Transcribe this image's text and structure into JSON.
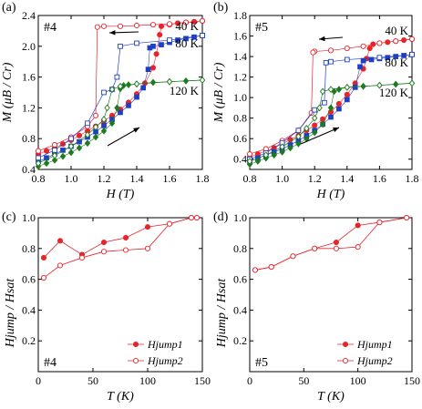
{
  "chart_data": [
    {
      "type": "scatter",
      "panel": "(a)",
      "sample": "#4",
      "ylabel": "M (μB / Cr)",
      "xlabel": "H (T)",
      "xlim": [
        0.8,
        1.8
      ],
      "ylim": [
        0.4,
        2.4
      ],
      "xticks": [
        "0.8",
        "1.0",
        "1.2",
        "1.4",
        "1.6",
        "1.8"
      ],
      "yticks": [
        "0.4",
        "0.8",
        "1.2",
        "1.6",
        "2.0",
        "2.4"
      ],
      "series": [
        {
          "name": "40 K",
          "color": "#e8242b",
          "up_x": [
            0.8,
            0.85,
            0.9,
            0.95,
            1.0,
            1.05,
            1.1,
            1.15,
            1.2,
            1.25,
            1.3,
            1.35,
            1.4,
            1.45,
            1.5,
            1.52,
            1.54,
            1.55,
            1.6,
            1.65,
            1.7,
            1.75,
            1.8
          ],
          "up_y": [
            0.6,
            0.64,
            0.68,
            0.73,
            0.78,
            0.84,
            0.9,
            0.96,
            1.03,
            1.1,
            1.18,
            1.27,
            1.38,
            1.52,
            1.72,
            1.9,
            2.15,
            2.26,
            2.28,
            2.3,
            2.31,
            2.32,
            2.33
          ],
          "down_x": [
            1.8,
            1.7,
            1.6,
            1.5,
            1.4,
            1.3,
            1.2,
            1.16,
            1.15,
            1.1,
            1.0,
            0.9,
            0.8
          ],
          "down_y": [
            2.33,
            2.31,
            2.29,
            2.28,
            2.27,
            2.26,
            2.26,
            2.25,
            1.1,
            0.96,
            0.82,
            0.72,
            0.64
          ]
        },
        {
          "name": "80 K",
          "color": "#1f3fc4",
          "up_x": [
            0.8,
            0.85,
            0.9,
            0.95,
            1.0,
            1.05,
            1.1,
            1.15,
            1.2,
            1.25,
            1.3,
            1.35,
            1.4,
            1.44,
            1.47,
            1.48,
            1.5,
            1.55,
            1.6,
            1.65,
            1.7,
            1.75,
            1.8
          ],
          "up_y": [
            0.5,
            0.55,
            0.6,
            0.65,
            0.7,
            0.76,
            0.82,
            0.89,
            0.97,
            1.05,
            1.14,
            1.23,
            1.34,
            1.46,
            1.7,
            1.98,
            2.0,
            2.02,
            2.05,
            2.08,
            2.1,
            2.12,
            2.14
          ],
          "down_x": [
            1.8,
            1.6,
            1.4,
            1.3,
            1.28,
            1.25,
            1.2,
            1.1,
            1.0,
            0.9,
            0.8
          ],
          "down_y": [
            2.14,
            2.08,
            2.04,
            2.0,
            1.6,
            1.44,
            1.4,
            1.0,
            0.8,
            0.65,
            0.55
          ]
        },
        {
          "name": "120 K",
          "color": "#1e7a1e",
          "up_x": [
            0.8,
            0.85,
            0.9,
            0.95,
            1.0,
            1.05,
            1.1,
            1.15,
            1.2,
            1.25,
            1.28,
            1.3,
            1.32,
            1.35,
            1.4,
            1.5,
            1.6,
            1.7,
            1.8
          ],
          "up_y": [
            0.44,
            0.48,
            0.52,
            0.57,
            0.62,
            0.68,
            0.74,
            0.82,
            0.9,
            1.0,
            1.2,
            1.45,
            1.49,
            1.5,
            1.51,
            1.53,
            1.54,
            1.55,
            1.56
          ],
          "down_x": [
            1.8,
            1.6,
            1.4,
            1.3,
            1.25,
            1.22,
            1.2,
            1.15,
            1.1,
            1.0,
            0.9,
            0.8
          ],
          "down_y": [
            1.56,
            1.54,
            1.51,
            1.48,
            1.44,
            1.2,
            1.05,
            0.95,
            0.85,
            0.7,
            0.58,
            0.48
          ]
        }
      ],
      "annotations": [
        "#4",
        "40 K",
        "80 K",
        "120 K"
      ]
    },
    {
      "type": "scatter",
      "panel": "(b)",
      "sample": "#5",
      "ylabel": "M (μB / Cr)",
      "xlabel": "H (T)",
      "xlim": [
        0.8,
        1.8
      ],
      "ylim": [
        0.3,
        1.8
      ],
      "xticks": [
        "0.8",
        "1.0",
        "1.2",
        "1.4",
        "1.6",
        "1.8"
      ],
      "yticks": [
        "0.4",
        "0.6",
        "0.8",
        "1.0",
        "1.2",
        "1.4",
        "1.6",
        "1.8"
      ],
      "series": [
        {
          "name": "40 K",
          "color": "#e8242b",
          "up_x": [
            0.8,
            0.85,
            0.9,
            0.95,
            1.0,
            1.05,
            1.1,
            1.15,
            1.2,
            1.25,
            1.3,
            1.35,
            1.4,
            1.45,
            1.5,
            1.52,
            1.54,
            1.56,
            1.6,
            1.65,
            1.7,
            1.75,
            1.8
          ],
          "up_y": [
            0.42,
            0.45,
            0.48,
            0.51,
            0.55,
            0.59,
            0.63,
            0.68,
            0.73,
            0.79,
            0.86,
            0.94,
            1.03,
            1.14,
            1.28,
            1.38,
            1.48,
            1.52,
            1.53,
            1.54,
            1.55,
            1.56,
            1.57
          ],
          "down_x": [
            1.8,
            1.7,
            1.6,
            1.5,
            1.4,
            1.3,
            1.2,
            1.19,
            1.18,
            1.1,
            1.0,
            0.9,
            0.8
          ],
          "down_y": [
            1.57,
            1.55,
            1.53,
            1.5,
            1.48,
            1.46,
            1.45,
            1.44,
            0.85,
            0.68,
            0.58,
            0.5,
            0.45
          ]
        },
        {
          "name": "80 K",
          "color": "#1f3fc4",
          "up_x": [
            0.8,
            0.85,
            0.9,
            0.95,
            1.0,
            1.05,
            1.1,
            1.15,
            1.2,
            1.25,
            1.3,
            1.35,
            1.4,
            1.45,
            1.48,
            1.5,
            1.55,
            1.6,
            1.65,
            1.7,
            1.75,
            1.8
          ],
          "up_y": [
            0.38,
            0.41,
            0.44,
            0.47,
            0.5,
            0.54,
            0.58,
            0.63,
            0.68,
            0.74,
            0.81,
            0.89,
            0.98,
            1.1,
            1.3,
            1.36,
            1.37,
            1.38,
            1.39,
            1.4,
            1.41,
            1.42
          ],
          "down_x": [
            1.8,
            1.6,
            1.4,
            1.3,
            1.27,
            1.26,
            1.2,
            1.1,
            1.0,
            0.9,
            0.8
          ],
          "down_y": [
            1.42,
            1.39,
            1.37,
            1.35,
            1.34,
            0.95,
            0.88,
            0.68,
            0.56,
            0.46,
            0.4
          ]
        },
        {
          "name": "120 K",
          "color": "#1e7a1e",
          "up_x": [
            0.8,
            0.85,
            0.9,
            0.95,
            1.0,
            1.05,
            1.1,
            1.15,
            1.2,
            1.25,
            1.3,
            1.32,
            1.35,
            1.4,
            1.5,
            1.6,
            1.7,
            1.8
          ],
          "up_y": [
            0.35,
            0.38,
            0.41,
            0.44,
            0.47,
            0.51,
            0.55,
            0.6,
            0.66,
            0.74,
            0.9,
            1.06,
            1.08,
            1.1,
            1.11,
            1.12,
            1.13,
            1.14
          ],
          "down_x": [
            1.8,
            1.6,
            1.4,
            1.3,
            1.25,
            1.23,
            1.2,
            1.15,
            1.1,
            1.0,
            0.9,
            0.8
          ],
          "down_y": [
            1.14,
            1.12,
            1.1,
            1.08,
            1.06,
            0.9,
            0.8,
            0.7,
            0.62,
            0.52,
            0.44,
            0.38
          ]
        }
      ],
      "annotations": [
        "#5",
        "40 K",
        "80 K",
        "120 K"
      ]
    },
    {
      "type": "line",
      "panel": "(c)",
      "sample": "#4",
      "xlabel": "T (K)",
      "ylabel": "Hjump / Hsat",
      "xlim": [
        0,
        150
      ],
      "ylim": [
        0,
        1.0
      ],
      "xticks": [
        "0",
        "50",
        "100",
        "150"
      ],
      "yticks": [
        "0.2",
        "0.4",
        "0.6",
        "0.8",
        "1.0"
      ],
      "series": [
        {
          "name": "Hjump1",
          "filled": true,
          "x": [
            5,
            20,
            40,
            60,
            80,
            100,
            120,
            140,
            145
          ],
          "y": [
            0.74,
            0.85,
            0.76,
            0.84,
            0.87,
            0.94,
            0.96,
            1.0,
            1.0
          ]
        },
        {
          "name": "Hjump2",
          "filled": false,
          "x": [
            5,
            20,
            40,
            60,
            80,
            100,
            120,
            140,
            145
          ],
          "y": [
            0.61,
            0.69,
            0.74,
            0.78,
            0.79,
            0.8,
            0.96,
            1.0,
            1.0
          ]
        }
      ],
      "legend": "bottom-right"
    },
    {
      "type": "line",
      "panel": "(d)",
      "sample": "#5",
      "xlabel": "T (K)",
      "ylabel": "Hjump / Hsat",
      "xlim": [
        0,
        150
      ],
      "ylim": [
        0,
        1.0
      ],
      "xticks": [
        "0",
        "50",
        "100",
        "150"
      ],
      "yticks": [
        "0.2",
        "0.4",
        "0.6",
        "0.8",
        "1.0"
      ],
      "series": [
        {
          "name": "Hjump1",
          "filled": true,
          "x": [
            5,
            20,
            40,
            60,
            80,
            100,
            120,
            145
          ],
          "y": [
            0.66,
            0.68,
            0.75,
            0.8,
            0.84,
            0.95,
            0.97,
            1.0
          ]
        },
        {
          "name": "Hjump2",
          "filled": false,
          "x": [
            5,
            20,
            40,
            60,
            80,
            100,
            120,
            145
          ],
          "y": [
            0.66,
            0.68,
            0.75,
            0.8,
            0.8,
            0.81,
            0.97,
            1.0
          ]
        }
      ],
      "legend": "bottom-right"
    }
  ],
  "colors": {
    "red": "#e8242b",
    "blue": "#1f3fc4",
    "green": "#1e7a1e"
  }
}
